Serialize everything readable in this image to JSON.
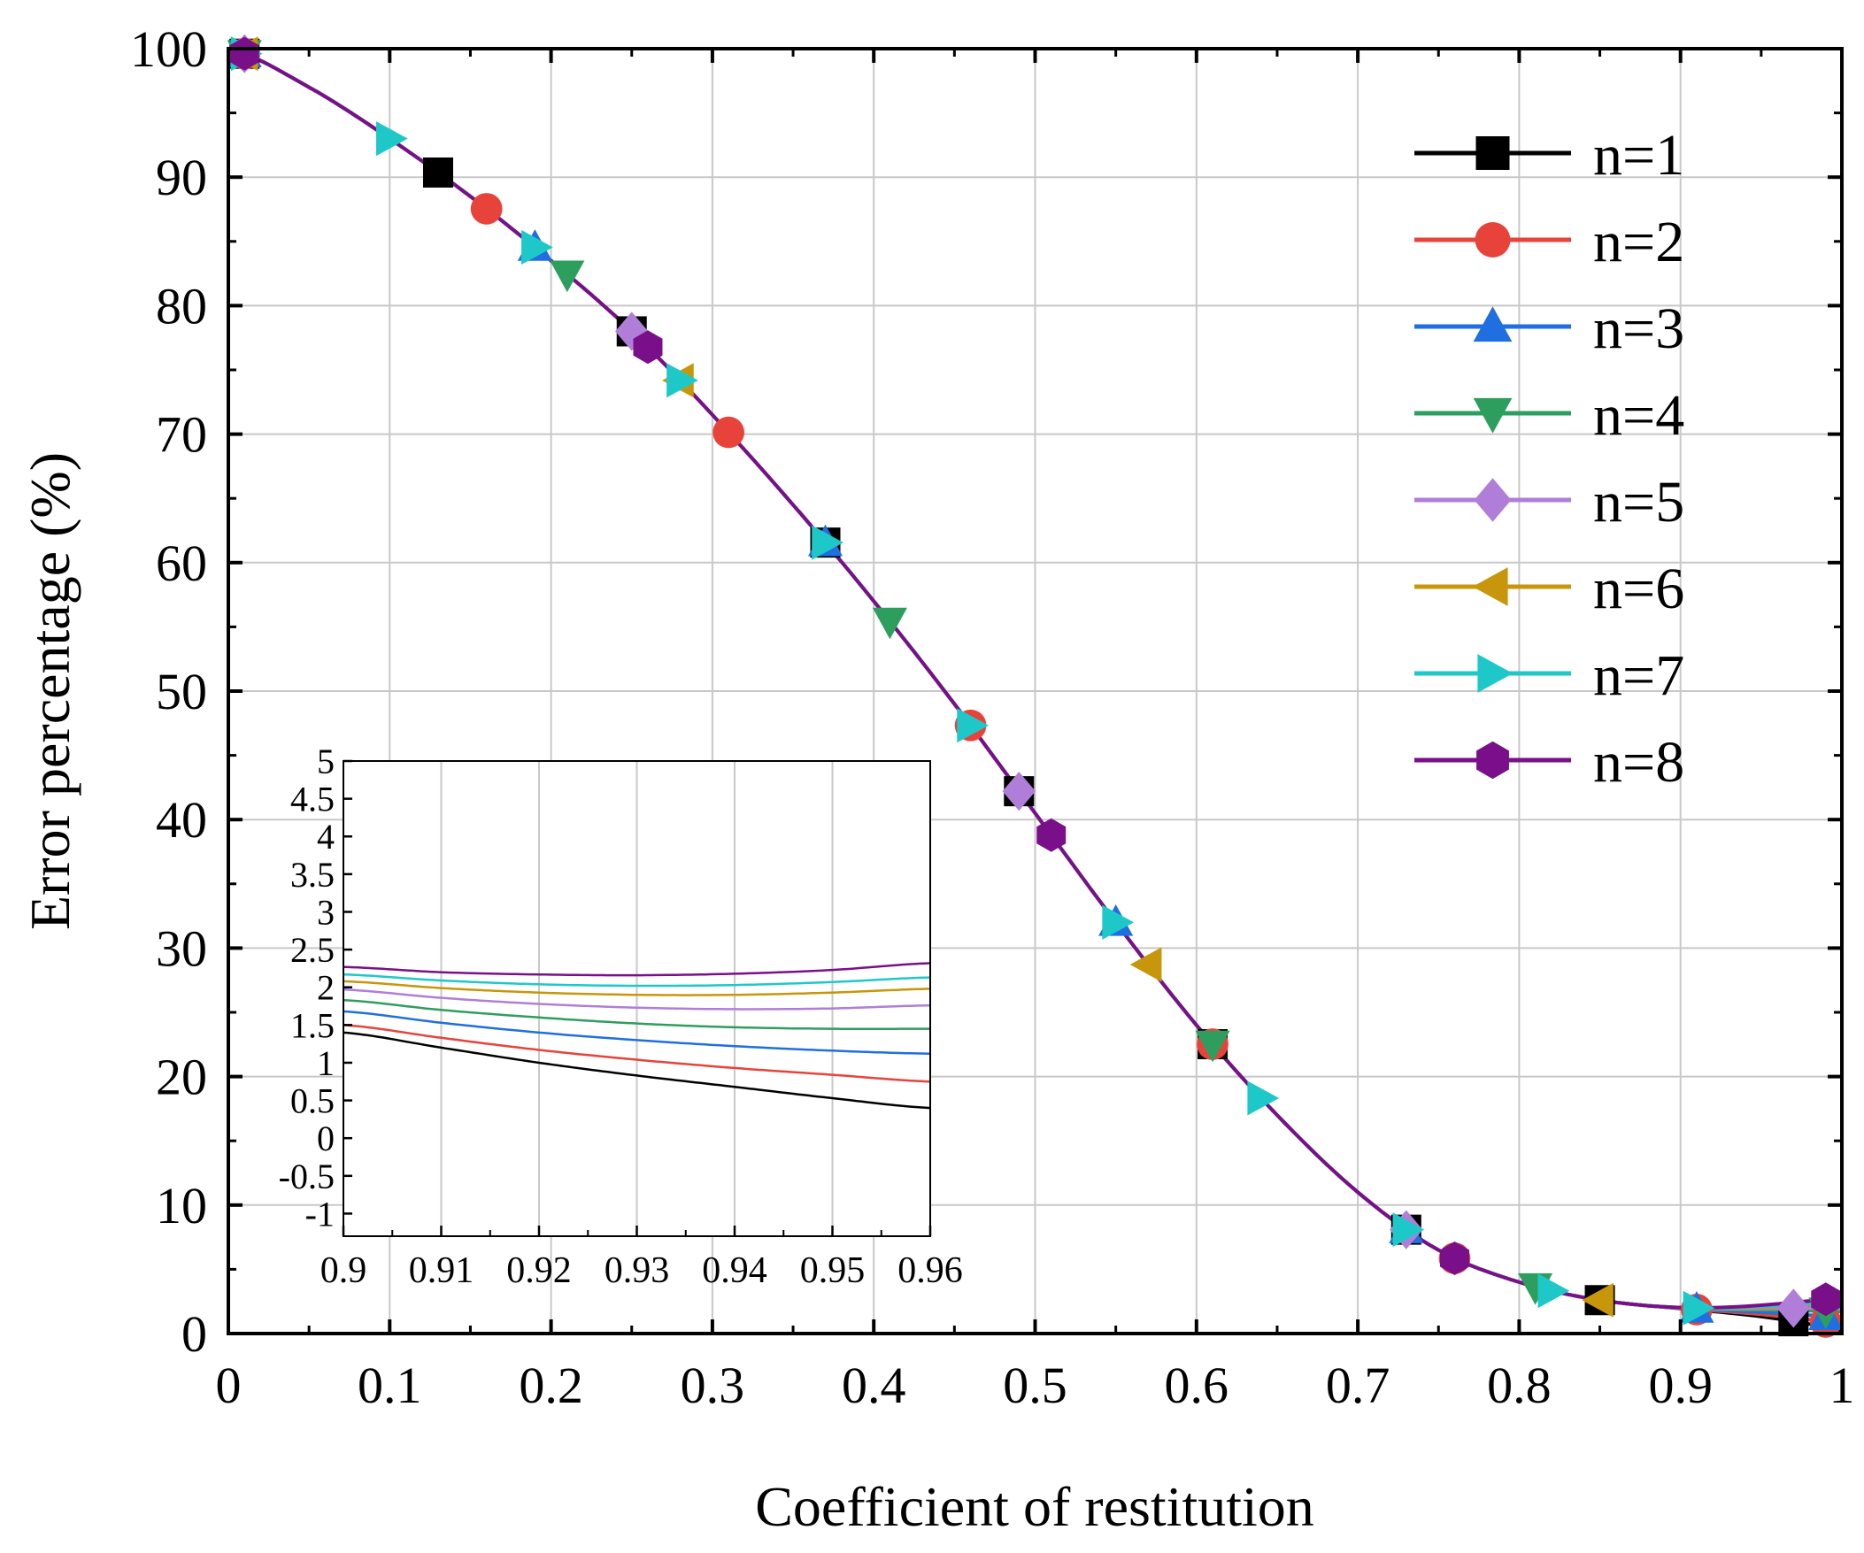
{
  "chart_data": {
    "type": "line",
    "xlabel": "Coefficient of restitution",
    "ylabel": "Error percentage (%)",
    "xlim": [
      0,
      1
    ],
    "ylim": [
      0,
      100
    ],
    "xticks": [
      0,
      0.1,
      0.2,
      0.3,
      0.4,
      0.5,
      0.6,
      0.7,
      0.8,
      0.9,
      1
    ],
    "xtick_labels": [
      "0",
      "0.1",
      "0.2",
      "0.3",
      "0.4",
      "0.5",
      "0.6",
      "0.7",
      "0.8",
      "0.9",
      "1"
    ],
    "yticks": [
      0,
      10,
      20,
      30,
      40,
      50,
      60,
      70,
      80,
      90,
      100
    ],
    "ytick_labels": [
      "0",
      "10",
      "20",
      "30",
      "40",
      "50",
      "60",
      "70",
      "80",
      "90",
      "100"
    ],
    "grid": true,
    "legend_position": "top-right",
    "main_curve": {
      "x": [
        0,
        0.05,
        0.1,
        0.15,
        0.2,
        0.25,
        0.3,
        0.35,
        0.4,
        0.45,
        0.5,
        0.55,
        0.6,
        0.65,
        0.7,
        0.75,
        0.8,
        0.85,
        0.9,
        0.95,
        1.0
      ],
      "y": [
        100,
        97,
        93,
        88.5,
        83.5,
        78,
        71.5,
        64.5,
        57,
        49,
        40.5,
        32,
        24,
        17,
        11,
        6.5,
        4,
        2.6,
        2.0,
        1.9,
        2.0
      ]
    },
    "series": [
      {
        "name": "n=1",
        "color": "#000000",
        "marker": "square",
        "markers_x": [
          0.01,
          0.13,
          0.25,
          0.37,
          0.49,
          0.61,
          0.73,
          0.85,
          0.97
        ],
        "end_value": 0.2
      },
      {
        "name": "n=2",
        "color": "#e8433b",
        "marker": "circle",
        "markers_x": [
          0.01,
          0.16,
          0.31,
          0.46,
          0.61,
          0.76,
          0.91,
          0.99
        ],
        "end_value": 0.7
      },
      {
        "name": "n=3",
        "color": "#1f6fe0",
        "marker": "triangle-up",
        "markers_x": [
          0.01,
          0.19,
          0.37,
          0.55,
          0.73,
          0.91,
          0.99
        ],
        "end_value": 1.2
      },
      {
        "name": "n=4",
        "color": "#2e9e5e",
        "marker": "triangle-down",
        "markers_x": [
          0.01,
          0.21,
          0.41,
          0.61,
          0.81,
          0.99
        ],
        "end_value": 1.7
      },
      {
        "name": "n=5",
        "color": "#b07ed8",
        "marker": "diamond",
        "markers_x": [
          0.01,
          0.25,
          0.49,
          0.73,
          0.97
        ],
        "end_value": 2.0
      },
      {
        "name": "n=6",
        "color": "#c8960a",
        "marker": "triangle-left",
        "markers_x": [
          0.01,
          0.28,
          0.57,
          0.85
        ],
        "end_value": 2.3
      },
      {
        "name": "n=7",
        "color": "#1fc8c8",
        "marker": "triangle-right",
        "markers_x": [
          0.01,
          0.1,
          0.19,
          0.28,
          0.37,
          0.46,
          0.55,
          0.64,
          0.73,
          0.82,
          0.91
        ],
        "end_value": 2.5
      },
      {
        "name": "n=8",
        "color": "#7a0f8a",
        "marker": "hexagon",
        "markers_x": [
          0.01,
          0.26,
          0.51,
          0.76,
          0.99
        ],
        "end_value": 2.8
      }
    ],
    "inset": {
      "xlim": [
        0.9,
        0.96
      ],
      "ylim": [
        -1.3,
        5
      ],
      "xticks": [
        0.9,
        0.91,
        0.92,
        0.93,
        0.94,
        0.95,
        0.96
      ],
      "xtick_labels": [
        "0.9",
        "0.91",
        "0.92",
        "0.93",
        "0.94",
        "0.95",
        "0.96"
      ],
      "yticks": [
        -1,
        -0.5,
        0,
        0.5,
        1,
        1.5,
        2,
        2.5,
        3,
        3.5,
        4,
        4.5,
        5
      ],
      "ytick_labels": [
        "-1",
        "-0.5",
        "0",
        "0.5",
        "1",
        "1.5",
        "2",
        "2.5",
        "3",
        "3.5",
        "4",
        "4.5",
        "5"
      ],
      "x": [
        0.9,
        0.91,
        0.92,
        0.93,
        0.94,
        0.95,
        0.96
      ],
      "series": [
        {
          "name": "n=1",
          "y": [
            1.4,
            1.2,
            1.0,
            0.83,
            0.68,
            0.53,
            0.4
          ]
        },
        {
          "name": "n=2",
          "y": [
            1.5,
            1.33,
            1.17,
            1.04,
            0.93,
            0.84,
            0.75
          ]
        },
        {
          "name": "n=3",
          "y": [
            1.68,
            1.53,
            1.4,
            1.3,
            1.22,
            1.16,
            1.12
          ]
        },
        {
          "name": "n=4",
          "y": [
            1.83,
            1.7,
            1.6,
            1.52,
            1.47,
            1.45,
            1.45
          ]
        },
        {
          "name": "n=5",
          "y": [
            1.97,
            1.86,
            1.78,
            1.73,
            1.71,
            1.72,
            1.76
          ]
        },
        {
          "name": "n=6",
          "y": [
            2.08,
            1.99,
            1.93,
            1.9,
            1.9,
            1.93,
            1.98
          ]
        },
        {
          "name": "n=7",
          "y": [
            2.17,
            2.09,
            2.04,
            2.02,
            2.03,
            2.07,
            2.13
          ]
        },
        {
          "name": "n=8",
          "y": [
            2.27,
            2.2,
            2.17,
            2.16,
            2.18,
            2.23,
            2.32
          ]
        }
      ]
    }
  }
}
